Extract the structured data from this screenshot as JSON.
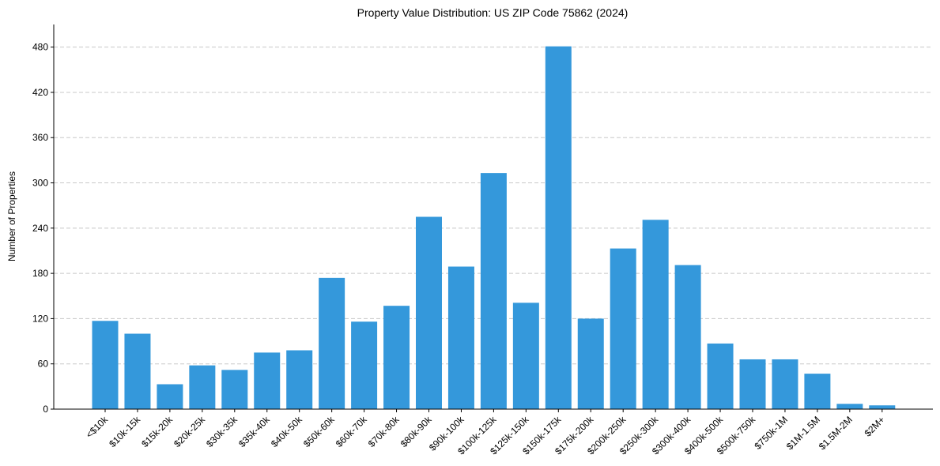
{
  "chart_data": {
    "type": "bar",
    "title": "Property Value Distribution: US ZIP Code 75862 (2024)",
    "xlabel": "",
    "ylabel": "Number of Properties",
    "ylim": [
      0,
      510
    ],
    "yticks": [
      0,
      60,
      120,
      180,
      240,
      300,
      360,
      420,
      480
    ],
    "grid": "y-dashed",
    "bar_color": "#3498db",
    "categories": [
      "<$10k",
      "$10k-15k",
      "$15k-20k",
      "$20k-25k",
      "$30k-35k",
      "$35k-40k",
      "$40k-50k",
      "$50k-60k",
      "$60k-70k",
      "$70k-80k",
      "$80k-90k",
      "$90k-100k",
      "$100k-125k",
      "$125k-150k",
      "$150k-175k",
      "$175k-200k",
      "$200k-250k",
      "$250k-300k",
      "$300k-400k",
      "$400k-500k",
      "$500k-750k",
      "$750k-1M",
      "$1M-1.5M",
      "$1.5M-2M",
      "$2M+"
    ],
    "values": [
      117,
      100,
      33,
      58,
      52,
      75,
      78,
      174,
      116,
      137,
      255,
      189,
      313,
      141,
      481,
      120,
      213,
      251,
      191,
      87,
      66,
      66,
      47,
      7,
      5
    ]
  }
}
